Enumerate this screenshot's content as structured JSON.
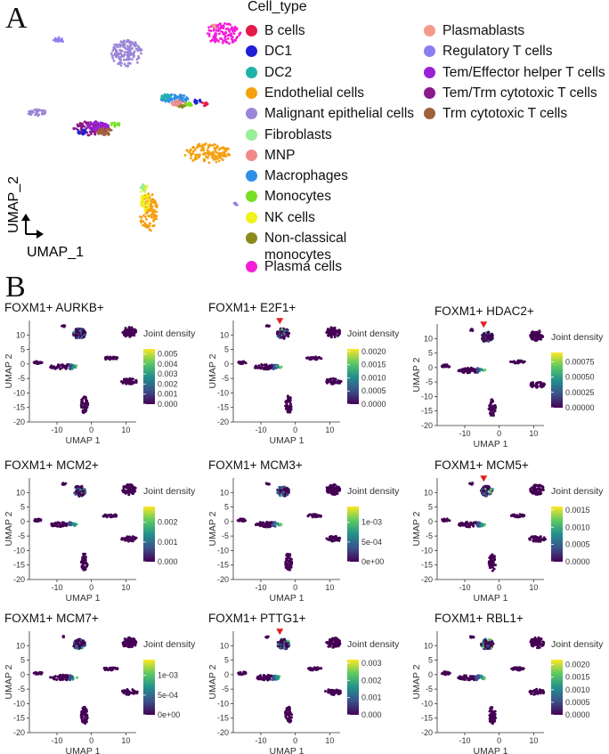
{
  "panel_a": {
    "label": "A",
    "legend_title": "Cell_type",
    "axis_x": "UMAP_1",
    "axis_y": "UMAP_2",
    "cell_types": [
      {
        "name": "B cells",
        "color": "#e31a4a"
      },
      {
        "name": "DC1",
        "color": "#1f1fd8"
      },
      {
        "name": "DC2",
        "color": "#20b2aa"
      },
      {
        "name": "Endothelial cells",
        "color": "#f5a00f"
      },
      {
        "name": "Malignant epithelial cells",
        "color": "#9b86d8"
      },
      {
        "name": "Fibroblasts",
        "color": "#99ee99"
      },
      {
        "name": "MNP",
        "color": "#f08a8a"
      },
      {
        "name": "Macrophages",
        "color": "#2f8ee6"
      },
      {
        "name": "Monocytes",
        "color": "#77e022"
      },
      {
        "name": "NK cells",
        "color": "#f2f21a"
      },
      {
        "name": "Non-classical monocytes",
        "color": "#8a8a1a"
      },
      {
        "name": "Plasma cells",
        "color": "#f51ed8"
      },
      {
        "name": "Plasmablasts",
        "color": "#f59a88"
      },
      {
        "name": "Regulatory T cells",
        "color": "#8a7ef0"
      },
      {
        "name": "Tem/Effector helper T cells",
        "color": "#9a20d8"
      },
      {
        "name": "Tem/Trm cytotoxic T cells",
        "color": "#8a1a8a"
      },
      {
        "name": "Trm cytotoxic T cells",
        "color": "#a0603a"
      }
    ]
  },
  "panel_b": {
    "label": "B",
    "x_label": "UMAP 1",
    "y_label": "UMAP 2",
    "legend_title": "Joint density",
    "x_ticks": [
      "-10",
      "0",
      "10"
    ],
    "y_ticks": [
      "10",
      "5",
      "0",
      "-5",
      "-10",
      "-15",
      "-20"
    ]
  },
  "chart_data": [
    {
      "type": "scatter",
      "title": "FOXM1+ AURKB+",
      "legend_ticks": [
        "0.005",
        "0.004",
        "0.003",
        "0.002",
        "0.001",
        "0.000"
      ],
      "legend_range": [
        0,
        0.0055
      ],
      "arrow": false,
      "x_range": [
        -18,
        13
      ],
      "y_range": [
        -20,
        15
      ]
    },
    {
      "type": "scatter",
      "title": "FOXM1+ E2F1+",
      "legend_ticks": [
        "0.0020",
        "0.0015",
        "0.0010",
        "0.0005",
        "0.0000"
      ],
      "legend_range": [
        0,
        0.0021
      ],
      "arrow": true,
      "x_range": [
        -18,
        13
      ],
      "y_range": [
        -20,
        15
      ]
    },
    {
      "type": "scatter",
      "title": "FOXM1+ HDAC2+",
      "legend_ticks": [
        "0.00075",
        "0.00050",
        "0.00025",
        "0.00000"
      ],
      "legend_range": [
        0,
        0.0009
      ],
      "arrow": true,
      "x_range": [
        -18,
        13
      ],
      "y_range": [
        -20,
        15
      ]
    },
    {
      "type": "scatter",
      "title": "FOXM1+ MCM2+",
      "legend_ticks": [
        "0.002",
        "0.001",
        "0.000"
      ],
      "legend_range": [
        0,
        0.0028
      ],
      "arrow": false,
      "x_range": [
        -18,
        13
      ],
      "y_range": [
        -20,
        15
      ]
    },
    {
      "type": "scatter",
      "title": "FOXM1+ MCM3+",
      "legend_ticks": [
        "1e-03",
        "5e-04",
        "0e+00"
      ],
      "legend_range": [
        0,
        0.0014
      ],
      "arrow": false,
      "x_range": [
        -18,
        13
      ],
      "y_range": [
        -20,
        15
      ]
    },
    {
      "type": "scatter",
      "title": "FOXM1+ MCM5+",
      "legend_ticks": [
        "0.0015",
        "0.0010",
        "0.0005",
        "0.0000"
      ],
      "legend_range": [
        0,
        0.0016
      ],
      "arrow": true,
      "x_range": [
        -18,
        13
      ],
      "y_range": [
        -20,
        15
      ]
    },
    {
      "type": "scatter",
      "title": "FOXM1+ MCM7+",
      "legend_ticks": [
        "1e-03",
        "5e-04",
        "0e+00"
      ],
      "legend_range": [
        0,
        0.0014
      ],
      "arrow": false,
      "x_range": [
        -18,
        13
      ],
      "y_range": [
        -20,
        15
      ]
    },
    {
      "type": "scatter",
      "title": "FOXM1+ PTTG1+",
      "legend_ticks": [
        "0.003",
        "0.002",
        "0.001",
        "0.000"
      ],
      "legend_range": [
        0,
        0.0032
      ],
      "arrow": true,
      "x_range": [
        -18,
        13
      ],
      "y_range": [
        -20,
        15
      ]
    },
    {
      "type": "scatter",
      "title": "FOXM1+ RBL1+",
      "legend_ticks": [
        "0.0020",
        "0.0015",
        "0.0010",
        "0.0005",
        "0.0000"
      ],
      "legend_range": [
        0,
        0.0022
      ],
      "arrow": false,
      "x_range": [
        -18,
        13
      ],
      "y_range": [
        -20,
        15
      ]
    }
  ]
}
